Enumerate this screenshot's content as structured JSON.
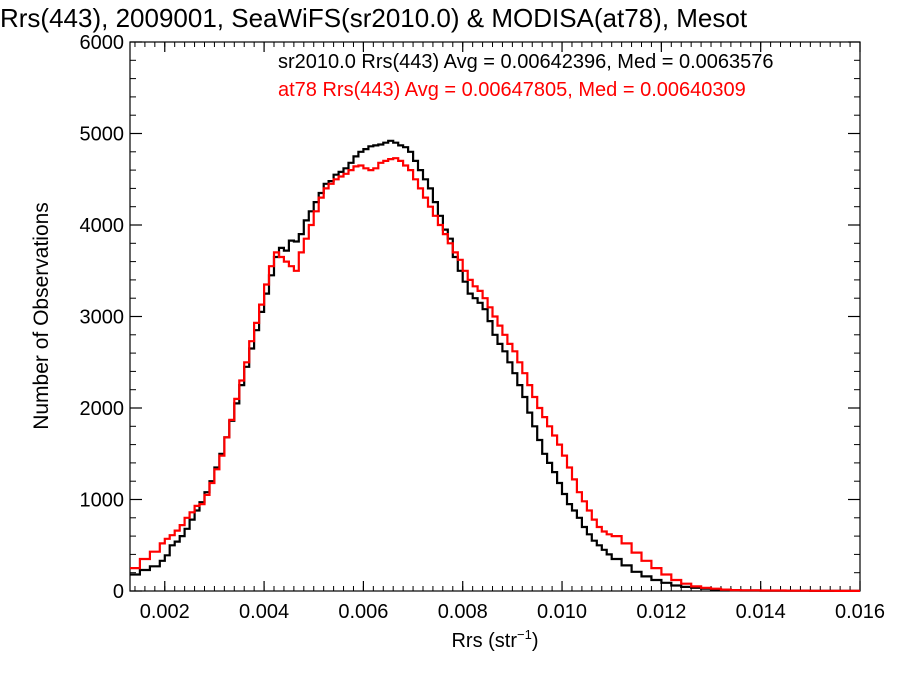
{
  "chart_data": {
    "type": "line",
    "title": "Rrs(443), 2009001, SeaWiFS(sr2010.0) & MODISA(at78), Mesot",
    "xlabel": "Rrs (str",
    "xlabel_sup": "−1",
    "xlabel_close": ")",
    "ylabel": "Number of Observations",
    "xlim": [
      0.0013,
      0.016
    ],
    "ylim": [
      0,
      6000
    ],
    "x_ticks": [
      0.002,
      0.004,
      0.006,
      0.008,
      0.01,
      0.012,
      0.014,
      0.016
    ],
    "x_tick_labels": [
      "0.002",
      "0.004",
      "0.006",
      "0.008",
      "0.010",
      "0.012",
      "0.014",
      "0.016"
    ],
    "y_ticks": [
      0,
      1000,
      2000,
      3000,
      4000,
      5000,
      6000
    ],
    "y_tick_labels": [
      "0",
      "1000",
      "2000",
      "3000",
      "4000",
      "5000",
      "6000"
    ],
    "grid": false,
    "legend_position": "top-right",
    "annotations": [
      {
        "text": "sr2010.0 Rrs(443) Avg = 0.00642396, Med = 0.0063576",
        "color": "#000000"
      },
      {
        "text": "at78 Rrs(443) Avg = 0.00647805, Med = 0.00640309",
        "color": "#ff0000"
      }
    ],
    "series": [
      {
        "color": "#000000",
        "x": [
          0.0013,
          0.0015,
          0.0017,
          0.0019,
          0.002,
          0.0021,
          0.0022,
          0.0023,
          0.0024,
          0.0025,
          0.0026,
          0.0027,
          0.0028,
          0.0029,
          0.003,
          0.0031,
          0.0032,
          0.0033,
          0.0034,
          0.0035,
          0.0036,
          0.0037,
          0.0038,
          0.0039,
          0.004,
          0.0041,
          0.0042,
          0.0043,
          0.0044,
          0.0045,
          0.0046,
          0.0047,
          0.0048,
          0.0049,
          0.005,
          0.0051,
          0.0052,
          0.0053,
          0.0054,
          0.0055,
          0.0056,
          0.0057,
          0.0058,
          0.0059,
          0.006,
          0.0061,
          0.0062,
          0.0063,
          0.0064,
          0.0065,
          0.0066,
          0.0067,
          0.0068,
          0.0069,
          0.007,
          0.0071,
          0.0072,
          0.0073,
          0.0074,
          0.0075,
          0.0076,
          0.0077,
          0.0078,
          0.0079,
          0.008,
          0.0081,
          0.0082,
          0.0083,
          0.0084,
          0.0085,
          0.0086,
          0.0087,
          0.0088,
          0.0089,
          0.009,
          0.0091,
          0.0092,
          0.0093,
          0.0094,
          0.0095,
          0.0096,
          0.0097,
          0.0098,
          0.0099,
          0.01,
          0.0101,
          0.0102,
          0.0103,
          0.0104,
          0.0105,
          0.0106,
          0.0107,
          0.0108,
          0.0109,
          0.011,
          0.0112,
          0.0114,
          0.0116,
          0.0118,
          0.012,
          0.0122,
          0.0124,
          0.0126,
          0.0128,
          0.013,
          0.0132,
          0.0134,
          0.0136,
          0.014,
          0.0145,
          0.015,
          0.0155,
          0.016
        ],
        "y": [
          180,
          230,
          270,
          330,
          390,
          500,
          540,
          600,
          680,
          780,
          880,
          970,
          1080,
          1200,
          1350,
          1500,
          1680,
          1860,
          2050,
          2250,
          2450,
          2650,
          2850,
          3050,
          3250,
          3450,
          3650,
          3750,
          3720,
          3830,
          3820,
          3900,
          4050,
          4150,
          4250,
          4350,
          4450,
          4480,
          4550,
          4580,
          4620,
          4680,
          4750,
          4800,
          4830,
          4860,
          4870,
          4880,
          4900,
          4920,
          4900,
          4870,
          4850,
          4800,
          4700,
          4600,
          4500,
          4400,
          4250,
          4100,
          3950,
          3850,
          3650,
          3500,
          3380,
          3250,
          3200,
          3150,
          3080,
          2950,
          2800,
          2700,
          2620,
          2500,
          2380,
          2250,
          2120,
          1950,
          1800,
          1650,
          1500,
          1400,
          1300,
          1180,
          1060,
          950,
          880,
          800,
          700,
          620,
          550,
          500,
          450,
          400,
          350,
          280,
          210,
          160,
          120,
          90,
          60,
          45,
          35,
          25,
          18,
          12,
          8,
          6,
          4,
          3,
          2,
          1,
          1
        ]
      },
      {
        "color": "#ff0000",
        "x": [
          0.0013,
          0.0015,
          0.0017,
          0.0019,
          0.002,
          0.0021,
          0.0022,
          0.0023,
          0.0024,
          0.0025,
          0.0026,
          0.0027,
          0.0028,
          0.0029,
          0.003,
          0.0031,
          0.0032,
          0.0033,
          0.0034,
          0.0035,
          0.0036,
          0.0037,
          0.0038,
          0.0039,
          0.004,
          0.0041,
          0.0042,
          0.0043,
          0.0044,
          0.0045,
          0.0046,
          0.0047,
          0.0048,
          0.0049,
          0.005,
          0.0051,
          0.0052,
          0.0053,
          0.0054,
          0.0055,
          0.0056,
          0.0057,
          0.0058,
          0.0059,
          0.006,
          0.0061,
          0.0062,
          0.0063,
          0.0064,
          0.0065,
          0.0066,
          0.0067,
          0.0068,
          0.0069,
          0.007,
          0.0071,
          0.0072,
          0.0073,
          0.0074,
          0.0075,
          0.0076,
          0.0077,
          0.0078,
          0.0079,
          0.008,
          0.0081,
          0.0082,
          0.0083,
          0.0084,
          0.0085,
          0.0086,
          0.0087,
          0.0088,
          0.0089,
          0.009,
          0.0091,
          0.0092,
          0.0093,
          0.0094,
          0.0095,
          0.0096,
          0.0097,
          0.0098,
          0.0099,
          0.01,
          0.0101,
          0.0102,
          0.0103,
          0.0104,
          0.0105,
          0.0106,
          0.0107,
          0.0108,
          0.0109,
          0.011,
          0.0112,
          0.0114,
          0.0116,
          0.0118,
          0.012,
          0.0122,
          0.0124,
          0.0126,
          0.0128,
          0.013,
          0.0132,
          0.0134,
          0.0136,
          0.014,
          0.0145,
          0.015,
          0.0155,
          0.016
        ],
        "y": [
          250,
          350,
          430,
          520,
          570,
          610,
          660,
          720,
          800,
          860,
          930,
          950,
          1050,
          1180,
          1330,
          1480,
          1680,
          1870,
          2100,
          2300,
          2500,
          2730,
          2930,
          3130,
          3350,
          3550,
          3700,
          3650,
          3600,
          3550,
          3500,
          3700,
          3850,
          4000,
          4150,
          4300,
          4400,
          4450,
          4500,
          4530,
          4560,
          4600,
          4640,
          4650,
          4620,
          4600,
          4620,
          4680,
          4700,
          4720,
          4730,
          4700,
          4650,
          4600,
          4500,
          4400,
          4300,
          4200,
          4100,
          4000,
          3900,
          3800,
          3700,
          3620,
          3500,
          3400,
          3330,
          3280,
          3200,
          3100,
          3000,
          2900,
          2800,
          2700,
          2620,
          2500,
          2380,
          2250,
          2120,
          2000,
          1900,
          1800,
          1700,
          1600,
          1480,
          1350,
          1220,
          1080,
          980,
          880,
          780,
          700,
          650,
          620,
          600,
          520,
          420,
          330,
          250,
          180,
          120,
          80,
          50,
          35,
          25,
          15,
          10,
          8,
          5,
          3,
          2,
          1,
          1
        ]
      }
    ]
  }
}
